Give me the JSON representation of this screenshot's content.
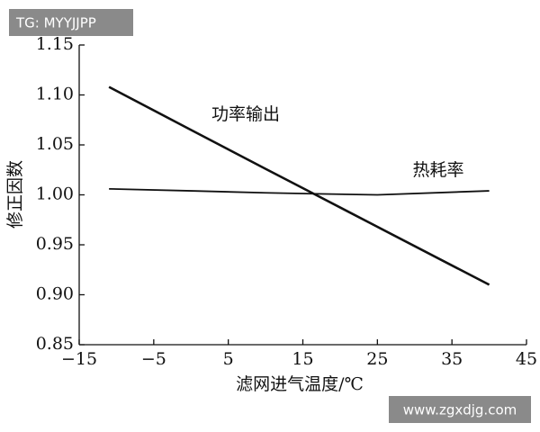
{
  "chart_data": {
    "type": "line",
    "x_label": "滤网进气温度/℃",
    "y_label": "修正因数",
    "x": [
      -11,
      0,
      10,
      17,
      25,
      40
    ],
    "series": [
      {
        "name": "功率输出",
        "color": "#111111",
        "values": [
          1.108,
          1.065,
          1.026,
          0.999,
          0.968,
          0.91
        ]
      },
      {
        "name": "热耗率",
        "color": "#111111",
        "values": [
          1.006,
          1.004,
          1.002,
          1.001,
          1.0,
          1.004
        ]
      }
    ],
    "xlim": [
      -15,
      45
    ],
    "xticks": [
      {
        "value": -15,
        "label": "−15"
      },
      {
        "value": -5,
        "label": "−5"
      },
      5,
      15,
      25,
      35,
      45
    ],
    "ylim": [
      0.85,
      1.15
    ],
    "yticks": [
      0.85,
      {
        "value": 0.9,
        "label": "0.90"
      },
      0.95,
      {
        "value": 1.0,
        "label": "1.00"
      },
      1.05,
      {
        "value": 1.1,
        "label": "1.10"
      },
      1.15
    ],
    "grid": false
  },
  "watermarks": [
    "TG: MYYJJPP",
    "www.zgxdjg.com"
  ]
}
